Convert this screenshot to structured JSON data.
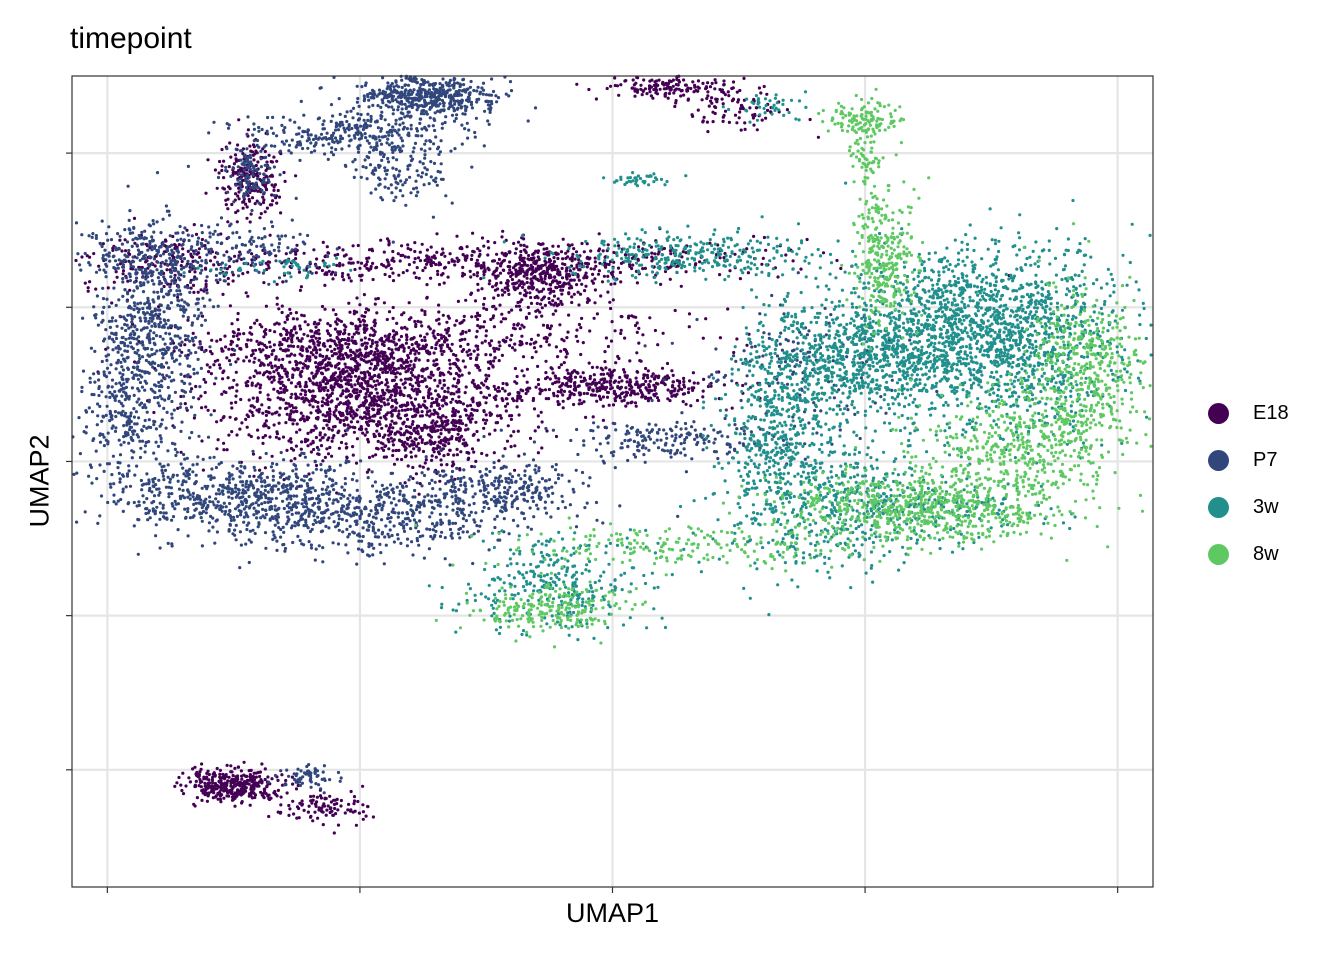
{
  "chart_data": {
    "type": "scatter",
    "title": "timepoint",
    "xlabel": "UMAP1",
    "ylabel": "UMAP2",
    "xlim": [
      -4.2,
      17.2
    ],
    "ylim": [
      -16.3,
      10.0
    ],
    "x_ticks": [
      -3.5,
      1.5,
      6.5,
      11.5,
      16.5
    ],
    "y_ticks": [
      7.5,
      2.5,
      -2.5,
      -7.5,
      -12.5
    ],
    "grid": true,
    "legend_position": "right",
    "series": [
      {
        "name": "E18",
        "color": "#440154",
        "clusters": [
          {
            "x": 1.8,
            "y": -0.5,
            "sx": 1.55,
            "sy": 1.0,
            "n": 1400
          },
          {
            "x": 0.8,
            "y": 1.0,
            "sx": 1.4,
            "sy": 0.6,
            "n": 500
          },
          {
            "x": 6.5,
            "y": -0.1,
            "sx": 1.1,
            "sy": 0.3,
            "n": 380
          },
          {
            "x": 5.1,
            "y": 3.5,
            "sx": 0.6,
            "sy": 0.5,
            "n": 350
          },
          {
            "x": 3.9,
            "y": 4.0,
            "sx": 2.8,
            "sy": 0.35,
            "n": 550
          },
          {
            "x": 3.5,
            "y": 1.7,
            "sx": 2.4,
            "sy": 0.6,
            "n": 420
          },
          {
            "x": -2.3,
            "y": 4.0,
            "sx": 0.9,
            "sy": 0.5,
            "n": 180
          },
          {
            "x": -1.0,
            "y": -13.0,
            "sx": 0.5,
            "sy": 0.25,
            "n": 360
          },
          {
            "x": 0.8,
            "y": -13.7,
            "sx": 0.5,
            "sy": 0.25,
            "n": 100
          },
          {
            "x": -0.7,
            "y": 6.7,
            "sx": 0.3,
            "sy": 0.6,
            "n": 220
          },
          {
            "x": 7.8,
            "y": 9.6,
            "sx": 0.7,
            "sy": 0.2,
            "n": 160
          },
          {
            "x": 9.0,
            "y": 8.8,
            "sx": 0.5,
            "sy": 0.3,
            "n": 70
          },
          {
            "x": 3.0,
            "y": -1.9,
            "sx": 0.5,
            "sy": 0.5,
            "n": 150
          }
        ]
      },
      {
        "name": "P7",
        "color": "#31477c",
        "clusters": [
          {
            "x": -2.6,
            "y": 1.8,
            "sx": 0.55,
            "sy": 1.7,
            "n": 650
          },
          {
            "x": -1.0,
            "y": -3.6,
            "sx": 1.5,
            "sy": 0.6,
            "n": 600
          },
          {
            "x": 1.6,
            "y": -4.3,
            "sx": 1.7,
            "sy": 0.6,
            "n": 550
          },
          {
            "x": 4.2,
            "y": -3.3,
            "sx": 0.9,
            "sy": 0.4,
            "n": 250
          },
          {
            "x": -1.9,
            "y": 4.3,
            "sx": 1.3,
            "sy": 0.45,
            "n": 300
          },
          {
            "x": -3.2,
            "y": -1.0,
            "sx": 0.4,
            "sy": 1.0,
            "n": 200
          },
          {
            "x": 7.6,
            "y": -1.8,
            "sx": 1.2,
            "sy": 0.35,
            "n": 200
          },
          {
            "x": 2.8,
            "y": 9.3,
            "sx": 0.7,
            "sy": 0.35,
            "n": 500
          },
          {
            "x": 1.2,
            "y": 8.1,
            "sx": 1.1,
            "sy": 0.35,
            "n": 300
          },
          {
            "x": -0.7,
            "y": 6.8,
            "sx": 0.25,
            "sy": 0.5,
            "n": 100
          },
          {
            "x": 2.3,
            "y": 6.8,
            "sx": 0.5,
            "sy": 0.5,
            "n": 120
          },
          {
            "x": 0.5,
            "y": -12.7,
            "sx": 0.35,
            "sy": 0.2,
            "n": 60
          },
          {
            "x": 10.0,
            "y": 0.6,
            "sx": 1.0,
            "sy": 1.0,
            "n": 150
          }
        ]
      },
      {
        "name": "3w",
        "color": "#21908d",
        "clusters": [
          {
            "x": 13.8,
            "y": 2.0,
            "sx": 1.3,
            "sy": 1.3,
            "n": 1300
          },
          {
            "x": 11.6,
            "y": 0.8,
            "sx": 1.1,
            "sy": 1.0,
            "n": 800
          },
          {
            "x": 9.8,
            "y": -1.2,
            "sx": 0.5,
            "sy": 1.7,
            "n": 450
          },
          {
            "x": 10.8,
            "y": -3.8,
            "sx": 1.2,
            "sy": 1.2,
            "n": 450
          },
          {
            "x": 14.7,
            "y": 0.5,
            "sx": 0.9,
            "sy": 1.2,
            "n": 300
          },
          {
            "x": 8.0,
            "y": 4.2,
            "sx": 1.2,
            "sy": 0.35,
            "n": 300
          },
          {
            "x": 5.3,
            "y": -6.5,
            "sx": 0.9,
            "sy": 0.8,
            "n": 300
          },
          {
            "x": 9.6,
            "y": 9.0,
            "sx": 0.3,
            "sy": 0.25,
            "n": 40
          },
          {
            "x": 7.0,
            "y": 6.6,
            "sx": 0.3,
            "sy": 0.1,
            "n": 40
          },
          {
            "x": 0.0,
            "y": 3.8,
            "sx": 0.7,
            "sy": 0.15,
            "n": 50
          },
          {
            "x": 12.6,
            "y": -4.0,
            "sx": 1.3,
            "sy": 0.5,
            "n": 200
          }
        ]
      },
      {
        "name": "8w",
        "color": "#5ec962",
        "clusters": [
          {
            "x": 12.5,
            "y": -4.0,
            "sx": 1.4,
            "sy": 0.6,
            "n": 700
          },
          {
            "x": 15.8,
            "y": 0.5,
            "sx": 0.6,
            "sy": 1.3,
            "n": 450
          },
          {
            "x": 14.5,
            "y": -2.0,
            "sx": 1.1,
            "sy": 0.9,
            "n": 450
          },
          {
            "x": 11.9,
            "y": 4.0,
            "sx": 0.3,
            "sy": 1.2,
            "n": 300
          },
          {
            "x": 8.0,
            "y": -5.3,
            "sx": 1.8,
            "sy": 0.35,
            "n": 200
          },
          {
            "x": 5.3,
            "y": -7.3,
            "sx": 0.8,
            "sy": 0.4,
            "n": 220
          },
          {
            "x": 11.4,
            "y": 8.6,
            "sx": 0.35,
            "sy": 0.3,
            "n": 120
          },
          {
            "x": 11.5,
            "y": 7.3,
            "sx": 0.15,
            "sy": 0.6,
            "n": 60
          }
        ]
      }
    ]
  }
}
